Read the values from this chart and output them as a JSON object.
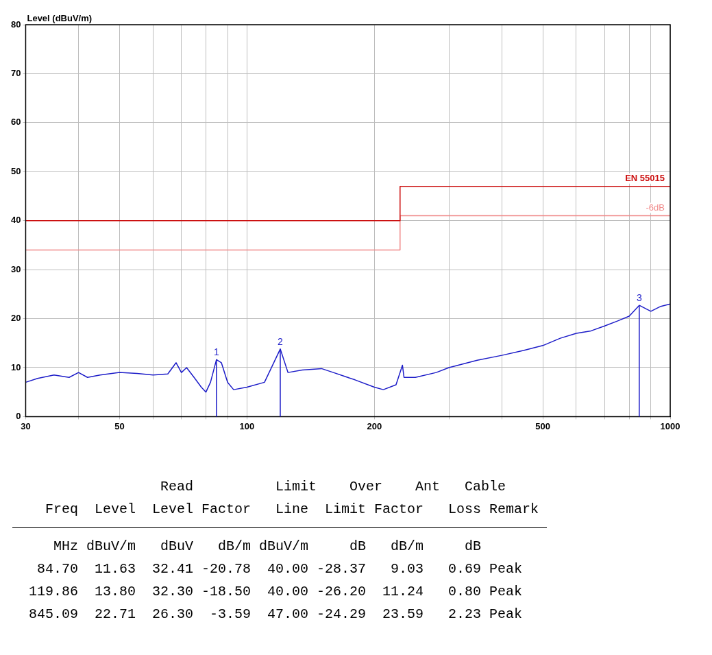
{
  "chart_data": {
    "type": "line",
    "ylabel": "Level (dBuV/m)",
    "xlim": [
      30,
      1000
    ],
    "xticks": [
      30,
      {
        "value": 40,
        "label": null
      },
      50,
      {
        "value": 60,
        "label": null
      },
      {
        "value": 70,
        "label": null
      },
      {
        "value": 80,
        "label": null
      },
      {
        "value": 90,
        "label": null
      },
      100,
      200,
      {
        "value": 300,
        "label": null
      },
      {
        "value": 400,
        "label": null
      },
      500,
      {
        "value": 600,
        "label": null
      },
      {
        "value": 700,
        "label": null
      },
      {
        "value": 800,
        "label": null
      },
      {
        "value": 900,
        "label": null
      },
      1000
    ],
    "ylim": [
      0,
      80
    ],
    "yticks": [
      0,
      10,
      20,
      30,
      40,
      50,
      60,
      70,
      80
    ],
    "log": "x",
    "grid": true,
    "legend": false,
    "marker": "none",
    "line_style": "solid",
    "series": [
      {
        "type": "line",
        "color": "#1c1cc8",
        "x": [
          30,
          32,
          35,
          38,
          40,
          42,
          45,
          50,
          55,
          60,
          65,
          68,
          70,
          72,
          75,
          78,
          80,
          82,
          84.7,
          87,
          90,
          93,
          100,
          110,
          119.86,
          125,
          135,
          150,
          160,
          180,
          200,
          210,
          225,
          233,
          235,
          250,
          280,
          300,
          350,
          400,
          450,
          500,
          550,
          600,
          650,
          700,
          750,
          800,
          845.09,
          900,
          950,
          1000
        ],
        "values": [
          7,
          7.8,
          8.5,
          8,
          9,
          8,
          8.5,
          9,
          8.8,
          8.5,
          8.7,
          11,
          9,
          10,
          8,
          6,
          5,
          7,
          11.63,
          11,
          7,
          5.5,
          6,
          7,
          13.8,
          9,
          9.5,
          9.8,
          9,
          7.5,
          6,
          5.5,
          6.5,
          10.5,
          8,
          8,
          9,
          10,
          11.5,
          12.5,
          13.5,
          14.5,
          16,
          17,
          17.5,
          18.5,
          19.5,
          20.5,
          22.71,
          21.5,
          22.5,
          23
        ]
      },
      {
        "type": "step",
        "name": "EN 55015",
        "color": "#cc1010",
        "x": [
          30,
          230,
          1000
        ],
        "values": [
          40,
          47,
          47
        ]
      },
      {
        "type": "step",
        "name": "-6dB",
        "color": "#f08a8a",
        "x": [
          30,
          230,
          1000
        ],
        "values": [
          34,
          41,
          41
        ]
      }
    ],
    "annotations": [
      {
        "text": "1",
        "x": 84.7,
        "y": 11.63
      },
      {
        "text": "2",
        "x": 119.86,
        "y": 13.8
      },
      {
        "text": "3",
        "x": 845.09,
        "y": 22.71
      },
      "                  Read          Limit    Over    Ant   Cable",
      "    Freq  Level  Level Factor   Line  Limit Factor   Loss Remark",
      "     MHz dBuV/m   dBuV   dB/m dBuV/m     dB   dB/m     dB",
      "   84.70  11.63  32.41 -20.78  40.00 -28.37   9.03   0.69 Peak",
      "  119.86  13.80  32.30 -18.50  40.00 -26.20  11.24   0.80 Peak",
      "  845.09  22.71  26.30  -3.59  47.00 -24.29  23.59   2.23 Peak"
    ]
  }
}
